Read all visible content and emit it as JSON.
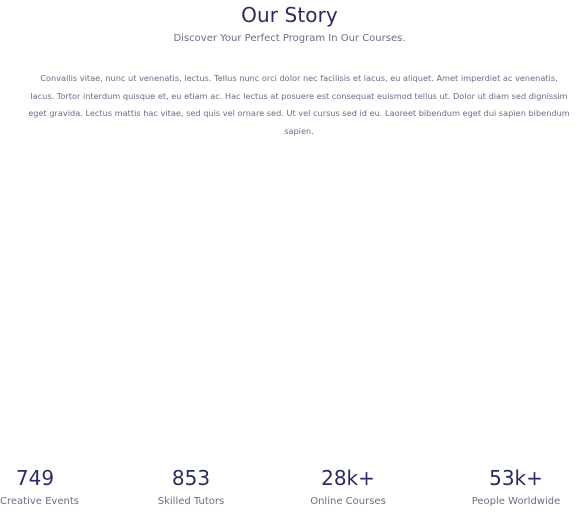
{
  "header": {
    "title": "Our Story",
    "subtitle": "Discover Your Perfect Program In Our Courses."
  },
  "body": {
    "paragraph": "Convallis vitae, nunc ut venenatis, lectus. Tellus nunc orci dolor nec facilisis et lacus, eu aliquet. Amet imperdiet ac venenatis, lacus. Tortor interdum quisque et, eu etiam ac. Hac lectus at posuere est consequat euismod tellus ut. Dolor ut diam sed dignissim eget gravida. Lectus mattis hac vitae, sed quis vel ornare sed. Ut vel cursus sed id eu. Laoreet bibendum eget dui sapien bibendum sapien."
  },
  "stats": [
    {
      "value": "749",
      "label": "Creative Events"
    },
    {
      "value": "853",
      "label": "Skilled Tutors"
    },
    {
      "value": "28k+",
      "label": "Online Courses"
    },
    {
      "value": "53k+",
      "label": "People Worldwide"
    }
  ],
  "colors": {
    "heading": "#2a2e5e",
    "text": "#6a6e8a",
    "background": "#ffffff"
  }
}
